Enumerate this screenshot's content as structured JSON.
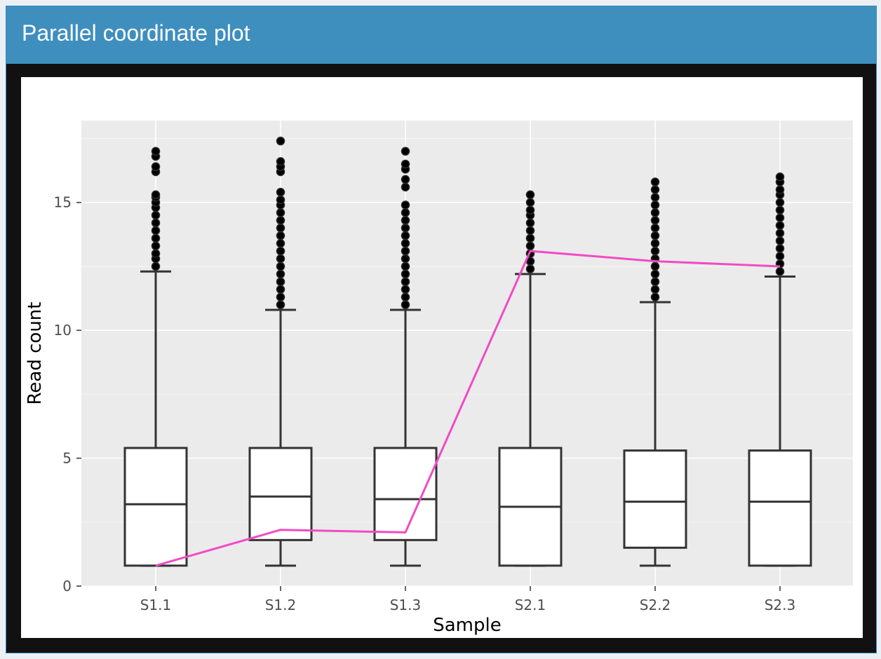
{
  "panel": {
    "title": "Parallel coordinate plot"
  },
  "chart_data": {
    "type": "boxplot",
    "title": "",
    "xlabel": "Sample",
    "ylabel": "Read count",
    "ylim": [
      0,
      18.2
    ],
    "yticks": [
      0,
      5,
      10,
      15
    ],
    "grid": true,
    "categories": [
      "S1.1",
      "S1.2",
      "S1.3",
      "S2.1",
      "S2.2",
      "S2.3"
    ],
    "boxes": [
      {
        "whisker_low": 0.8,
        "q1": 0.8,
        "median": 3.2,
        "q3": 5.4,
        "whisker_high": 12.3,
        "outliers": [
          12.5,
          12.8,
          13.0,
          13.3,
          13.6,
          13.9,
          14.2,
          14.5,
          14.8,
          15.0,
          15.2,
          15.3,
          16.2,
          16.4,
          16.8,
          17.0
        ]
      },
      {
        "whisker_low": 0.8,
        "q1": 1.8,
        "median": 3.5,
        "q3": 5.4,
        "whisker_high": 10.8,
        "outliers": [
          11.0,
          11.3,
          11.6,
          11.9,
          12.2,
          12.5,
          12.8,
          13.1,
          13.4,
          13.7,
          14.0,
          14.3,
          14.6,
          14.9,
          15.1,
          15.4,
          16.2,
          16.4,
          16.6,
          17.4
        ]
      },
      {
        "whisker_low": 0.8,
        "q1": 1.8,
        "median": 3.4,
        "q3": 5.4,
        "whisker_high": 10.8,
        "outliers": [
          11.0,
          11.3,
          11.6,
          11.9,
          12.2,
          12.5,
          12.8,
          13.1,
          13.4,
          13.7,
          14.0,
          14.3,
          14.6,
          14.9,
          15.6,
          15.9,
          16.3,
          16.5,
          17.0
        ]
      },
      {
        "whisker_low": 0.8,
        "q1": 0.8,
        "median": 3.1,
        "q3": 5.4,
        "whisker_high": 12.2,
        "outliers": [
          12.4,
          12.7,
          13.0,
          13.3,
          13.6,
          13.9,
          14.2,
          14.5,
          14.7,
          15.0,
          15.3
        ]
      },
      {
        "whisker_low": 0.8,
        "q1": 1.5,
        "median": 3.3,
        "q3": 5.3,
        "whisker_high": 11.1,
        "outliers": [
          11.3,
          11.6,
          11.9,
          12.2,
          12.5,
          12.8,
          13.1,
          13.4,
          13.7,
          14.0,
          14.3,
          14.6,
          14.9,
          15.2,
          15.5,
          15.8
        ]
      },
      {
        "whisker_low": 0.8,
        "q1": 0.8,
        "median": 3.3,
        "q3": 5.3,
        "whisker_high": 12.1,
        "outliers": [
          12.3,
          12.6,
          12.9,
          13.2,
          13.5,
          13.8,
          14.1,
          14.4,
          14.7,
          15.0,
          15.3,
          15.5,
          15.8,
          16.0
        ]
      }
    ],
    "series": [
      {
        "values": [
          0.8,
          2.2,
          2.1,
          13.1,
          12.7,
          12.5
        ],
        "color": "#f04cc4"
      }
    ],
    "colors": {
      "panel_bg": "#ebebeb",
      "grid": "#ffffff",
      "box_fill": "#ffffff",
      "box_stroke": "#333333",
      "outlier": "#000000"
    }
  }
}
